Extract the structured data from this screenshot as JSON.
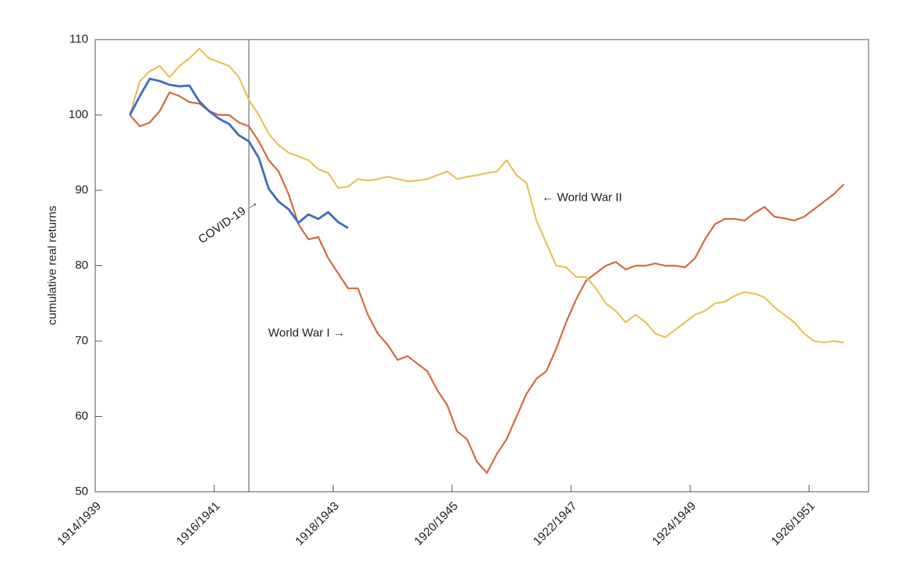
{
  "chart_data": {
    "type": "line",
    "ylabel": "cumulative real returns",
    "x": [
      7,
      9,
      11,
      13,
      15,
      17,
      19,
      21,
      23,
      25,
      27,
      29,
      31,
      33,
      35,
      37,
      39,
      41,
      43,
      45,
      47,
      49,
      51,
      53,
      55,
      57,
      59,
      61,
      63,
      65,
      67,
      69,
      71,
      73,
      75,
      77,
      79,
      81,
      83,
      85,
      87,
      89,
      91,
      93,
      95,
      97,
      99,
      101,
      103,
      105,
      107,
      109,
      111,
      113,
      115,
      117,
      119,
      121,
      123,
      125,
      127,
      129,
      131,
      133,
      135,
      137,
      139,
      141,
      143,
      145,
      147,
      149,
      151
    ],
    "series": [
      {
        "color": "#d0693a",
        "values": [
          100,
          98.5,
          99,
          100.5,
          103,
          102.5,
          101.7,
          101.5,
          100.5,
          100,
          100,
          99,
          98.5,
          96.5,
          94,
          92.5,
          89.5,
          85.5,
          83.5,
          83.8,
          81,
          79,
          77,
          77,
          73.5,
          71,
          69.5,
          67.5,
          68,
          67,
          66,
          63.5,
          61.5,
          58,
          57,
          54,
          52.5,
          55,
          57,
          60,
          63,
          65,
          66,
          69,
          72.5,
          75.5,
          78,
          79,
          80,
          80.5,
          79.5,
          80,
          80,
          80.3,
          80,
          80,
          79.8,
          81,
          83.5,
          85.5,
          86.2,
          86.2,
          86,
          87,
          87.8,
          86.5,
          86.3,
          86,
          86.5,
          87.5,
          88.5,
          89.5,
          90.8
        ]
      },
      {
        "color": "#e5c15a",
        "values": [
          100,
          104.5,
          105.8,
          106.5,
          105,
          106.5,
          107.5,
          108.8,
          107.5,
          107,
          106.5,
          105,
          102,
          100,
          97.5,
          96,
          95,
          94.5,
          94,
          92.8,
          92.3,
          90.3,
          90.5,
          91.5,
          91.3,
          91.5,
          91.8,
          91.5,
          91.2,
          91.3,
          91.5,
          92,
          92.5,
          91.5,
          91.8,
          92,
          92.3,
          92.5,
          94,
          92,
          91,
          86,
          83,
          80,
          79.8,
          78.5,
          78.5,
          77,
          75,
          74,
          72.5,
          73.5,
          72.5,
          71,
          70.5,
          71.5,
          72.5,
          73.5,
          74,
          75,
          75.2,
          76,
          76.5,
          76.3,
          75.8,
          74.5,
          73.5,
          72.5,
          71,
          70,
          69.8,
          70,
          69.8
        ]
      },
      {
        "color": "#3f6fbf",
        "values": [
          100,
          102.5,
          104.8,
          104.5,
          104,
          103.8,
          103.9,
          101.8,
          100.5,
          99.5,
          98.8,
          97.3,
          96.5,
          94.3,
          90.2,
          88.5,
          87.5,
          85.7,
          86.8,
          86.2,
          87.1,
          85.8,
          85,
          null,
          null,
          null,
          null,
          null,
          null,
          null,
          null,
          null,
          null,
          null,
          null,
          null,
          null,
          null,
          null,
          null,
          null,
          null,
          null,
          null,
          null,
          null,
          null,
          null,
          null,
          null,
          null,
          null,
          null,
          null,
          null,
          null,
          null,
          null,
          null,
          null,
          null,
          null,
          null,
          null,
          null,
          null,
          null,
          null,
          null,
          null,
          null,
          null,
          null
        ]
      }
    ],
    "vline": 31,
    "annotations": [
      "COVID-19 →",
      "World War I →",
      "← World War II"
    ],
    "xlim": [
      0,
      156
    ],
    "xticks": [
      {
        "value": 0,
        "label": "1914/1939"
      },
      {
        "value": 24,
        "label": "1916/1941"
      },
      {
        "value": 48,
        "label": "1918/1943"
      },
      {
        "value": 72,
        "label": "1920/1945"
      },
      {
        "value": 96,
        "label": "1922/1947"
      },
      {
        "value": 120,
        "label": "1924/1949"
      },
      {
        "value": 144,
        "label": "1926/1951"
      }
    ],
    "ylim": [
      50,
      110
    ],
    "yticks": [
      50,
      60,
      70,
      80,
      90,
      100,
      110
    ],
    "grid": false
  }
}
